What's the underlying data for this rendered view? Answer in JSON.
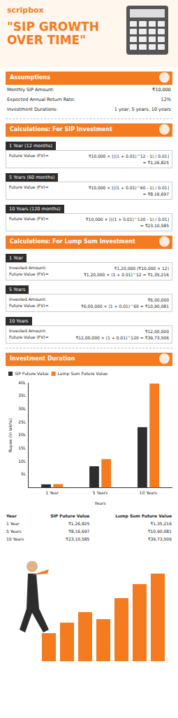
{
  "header": {
    "logo": "scripbox",
    "title": "\"SIP GROWTH OVER TIME\""
  },
  "assumptions": {
    "heading": "Assumptions",
    "rows": [
      {
        "label": "Monthly SIP Amount:",
        "value": "₹10,000"
      },
      {
        "label": "Expected Annual Return Rate:",
        "value": "12%"
      },
      {
        "label": "Investment Durations:",
        "value": "1 year, 5 years, 10 years"
      }
    ]
  },
  "sip": {
    "heading": "Calculations: For SIP Investment",
    "items": [
      {
        "label": "1 Year (12 months)",
        "fv_label": "Future Value (FV)=",
        "formula": "₹10,000 × [((1 + 0.01)^12 - 1) / 0.01]",
        "result": "= ₹1,26,825"
      },
      {
        "label": "5 Years (60 months)",
        "fv_label": "Future Value (FV)=",
        "formula": "₹10,000 × [((1 + 0.01)^60 - 1) / 0.01]",
        "result": "= ₹8,16,697"
      },
      {
        "label": "10 Years (120 months)",
        "fv_label": "Future Value (FV)=",
        "formula": "₹10,000 × [((1 + 0.01)^120 - 1) / 0.01]",
        "result": "= ₹23,10,585"
      }
    ]
  },
  "lump": {
    "heading": "Calculations: For Lump Sum Investment",
    "items": [
      {
        "label": "1 Year",
        "invested_label": "Invested Amount:",
        "invested": "₹1,20,000 (₹10,000 × 12)",
        "fv_label": "Future Value (FV)=",
        "formula": "₹1,20,000 × (1 + 0.01)^12 = ₹1,35,216"
      },
      {
        "label": "5 Years",
        "invested_label": "Invested Amount:",
        "invested": "₹6,00,000",
        "fv_label": "Future Value (FV)=",
        "formula": "₹6,00,000 × (1 + 0.01)^60 = ₹10,90,081"
      },
      {
        "label": "10 Years",
        "invested_label": "Invested Amount:",
        "invested": "₹12,00,000",
        "fv_label": "Future Value (FV)=",
        "formula": "₹12,00,000 × (1 + 0.01)^120 = ₹39,73,506"
      }
    ]
  },
  "chart_section": {
    "heading": "Investment Duration"
  },
  "chart_data": {
    "type": "bar",
    "categories": [
      "1 Year",
      "5 Years",
      "10 Years"
    ],
    "series": [
      {
        "name": "SIP Future Value",
        "color": "#2d2d2d",
        "values": [
          1.26825,
          8.16697,
          23.10585
        ]
      },
      {
        "name": "Lump Sum Future Value",
        "color": "#f47b20",
        "values": [
          1.35216,
          10.90081,
          39.73506
        ]
      }
    ],
    "x_label": "Years",
    "y_label": "Rupee (in lakhs)",
    "ylim": [
      0,
      40
    ],
    "yticks": [
      {
        "value": 5,
        "label": "5L"
      },
      {
        "value": 10,
        "label": "10L"
      },
      {
        "value": 15,
        "label": "15L"
      },
      {
        "value": 20,
        "label": "20L"
      },
      {
        "value": 25,
        "label": "25L"
      },
      {
        "value": 30,
        "label": "30L"
      },
      {
        "value": 35,
        "label": "35L"
      },
      {
        "value": 40,
        "label": "40L"
      }
    ],
    "grid": false,
    "legend": "upper left"
  },
  "table": {
    "header": [
      "Year",
      "SIP Future Value",
      "Lump Sum Future Value"
    ],
    "rows": [
      [
        "1 Year",
        "₹1,26,825",
        "₹1,35,216"
      ],
      [
        "5 Years",
        "₹8,16,697",
        "₹10,90,081"
      ],
      [
        "10 Years",
        "₹23,10,585",
        "₹39,73,506"
      ]
    ]
  }
}
